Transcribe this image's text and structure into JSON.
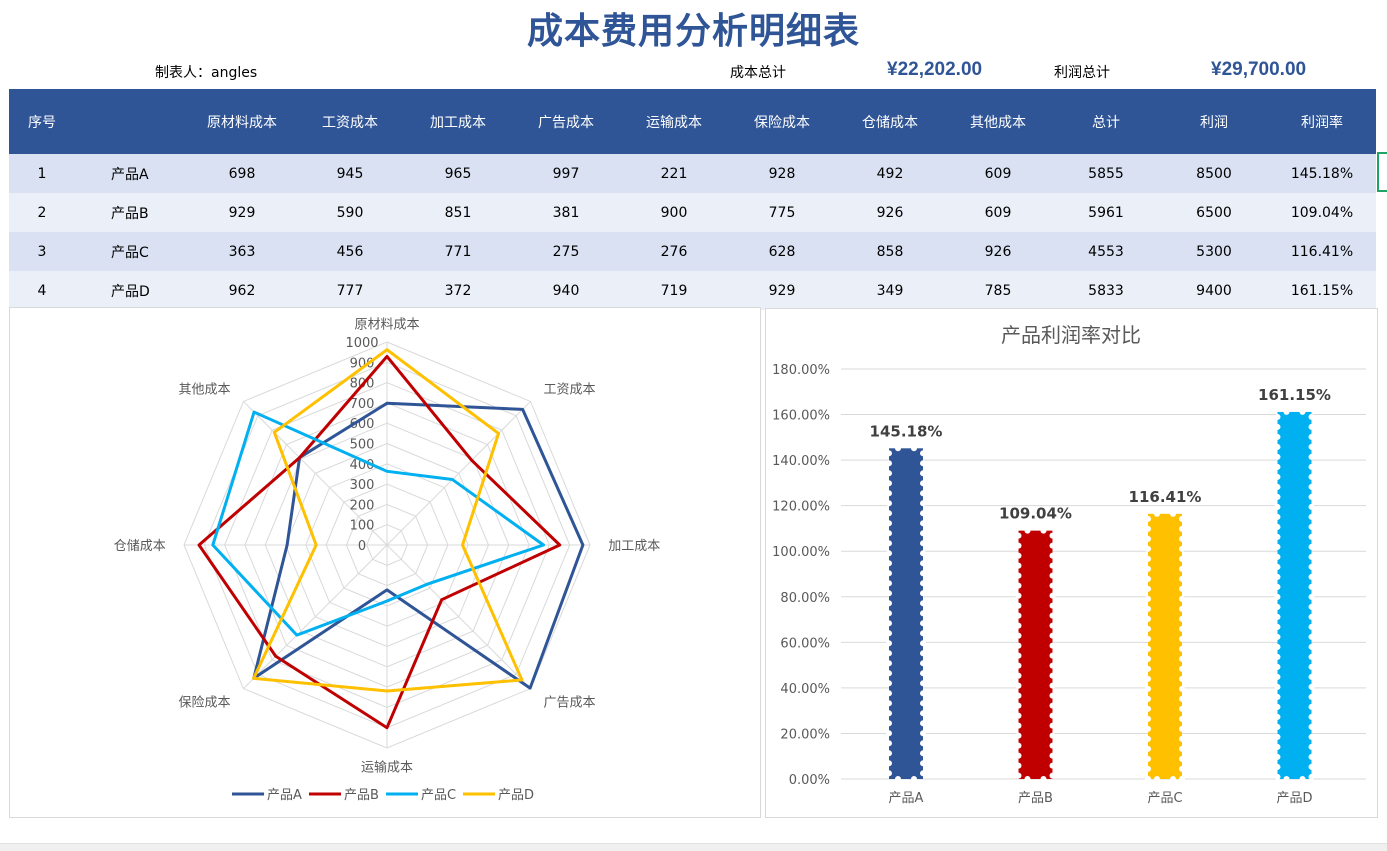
{
  "title": "成本费用分析明细表",
  "info": {
    "maker_label": "制表人：angles",
    "cost_total_label": "成本总计",
    "cost_total": "¥22,202.00",
    "profit_total_label": "利润总计",
    "profit_total": "¥29,700.00"
  },
  "table": {
    "headers": [
      "序号",
      "",
      "原材料成本",
      "工资成本",
      "加工成本",
      "广告成本",
      "运输成本",
      "保险成本",
      "仓储成本",
      "其他成本",
      "总计",
      "利润",
      "利润率"
    ],
    "rows": [
      [
        "1",
        "产品A",
        "698",
        "945",
        "965",
        "997",
        "221",
        "928",
        "492",
        "609",
        "5855",
        "8500",
        "145.18%"
      ],
      [
        "2",
        "产品B",
        "929",
        "590",
        "851",
        "381",
        "900",
        "775",
        "926",
        "609",
        "5961",
        "6500",
        "109.04%"
      ],
      [
        "3",
        "产品C",
        "363",
        "456",
        "771",
        "275",
        "276",
        "628",
        "858",
        "926",
        "4553",
        "5300",
        "116.41%"
      ],
      [
        "4",
        "产品D",
        "962",
        "777",
        "372",
        "940",
        "719",
        "929",
        "349",
        "785",
        "5833",
        "9400",
        "161.15%"
      ]
    ]
  },
  "chart_data": [
    {
      "type": "radar",
      "title": "",
      "axes": [
        "原材料成本",
        "工资成本",
        "加工成本",
        "广告成本",
        "运输成本",
        "保险成本",
        "仓储成本",
        "其他成本"
      ],
      "ticks": [
        "0",
        "100",
        "200",
        "300",
        "400",
        "500",
        "600",
        "700",
        "800",
        "900",
        "1000"
      ],
      "range": [
        0,
        1000
      ],
      "series": [
        {
          "name": "产品A",
          "color": "#2F5597",
          "values": [
            698,
            945,
            965,
            997,
            221,
            928,
            492,
            609
          ]
        },
        {
          "name": "产品B",
          "color": "#C00000",
          "values": [
            929,
            590,
            851,
            381,
            900,
            775,
            926,
            609
          ]
        },
        {
          "name": "产品C",
          "color": "#00B0F0",
          "values": [
            363,
            456,
            771,
            275,
            276,
            628,
            858,
            926
          ]
        },
        {
          "name": "产品D",
          "color": "#FFC000",
          "values": [
            962,
            777,
            372,
            940,
            719,
            929,
            349,
            785
          ]
        }
      ],
      "legend": "bottom"
    },
    {
      "type": "bar",
      "title": "产品利润率对比",
      "categories": [
        "产品A",
        "产品B",
        "产品C",
        "产品D"
      ],
      "values": [
        145.18,
        109.04,
        116.41,
        161.15
      ],
      "labels": [
        "145.18%",
        "109.04%",
        "116.41%",
        "161.15%"
      ],
      "colors": [
        "#2F5597",
        "#C00000",
        "#FFC000",
        "#00B0F0"
      ],
      "yticks": [
        "0.00%",
        "20.00%",
        "40.00%",
        "60.00%",
        "80.00%",
        "100.00%",
        "120.00%",
        "140.00%",
        "160.00%",
        "180.00%"
      ],
      "ylim": [
        0,
        180
      ],
      "grid": true
    }
  ]
}
